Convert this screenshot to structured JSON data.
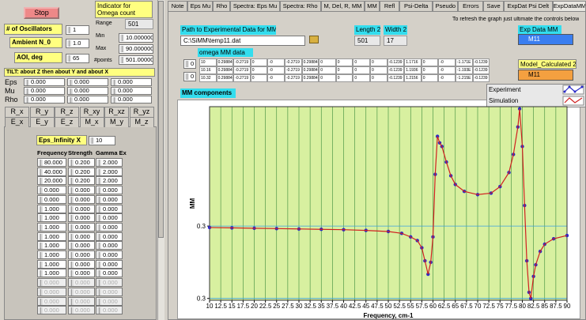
{
  "left": {
    "stop": "Stop",
    "indicator_label": "Indicator for Omega count",
    "range_label": "Range",
    "range_count": "501",
    "oscillators_label": "# of Oscillators",
    "oscillators": "1",
    "ambient_label": "Ambient  N_0",
    "ambient": "1.0",
    "aoi_label": "AOI, deg",
    "aoi": "65",
    "min_label": "Min",
    "min": "10.000000",
    "max_label": "Max",
    "max": "90.000000",
    "points_label": "#points",
    "points": "501.000000",
    "tilt_label": "TILT:  about Z    then    about   Y      and about X",
    "tilt_rows": [
      {
        "name": "Eps",
        "values": [
          "0.000",
          "0.000",
          "0.000"
        ]
      },
      {
        "name": "Mu",
        "values": [
          "0.000",
          "0.000",
          "0.000"
        ]
      },
      {
        "name": "Rho",
        "values": [
          "0.000",
          "0.000",
          "0.000"
        ]
      }
    ],
    "tabs_row1": [
      "R_x",
      "R_y",
      "R_z",
      "R_xy",
      "R_xz",
      "R_yz"
    ],
    "tabs_row2": [
      "E_x",
      "E_y",
      "E_z",
      "M_x",
      "M_y",
      "M_z"
    ],
    "eps_inf_label": "Eps_Infinity X",
    "eps_inf": "10",
    "osc_headers": [
      "Frequency",
      "Strength",
      "Gamma Ex"
    ],
    "osc_rows": [
      [
        "80.000",
        "0.200",
        "2.000"
      ],
      [
        "40.000",
        "0.200",
        "2.000"
      ],
      [
        "20.000",
        "0.200",
        "2.000"
      ],
      [
        "0.000",
        "0.000",
        "0.000"
      ],
      [
        "0.000",
        "0.000",
        "0.000"
      ],
      [
        "1.000",
        "0.000",
        "0.000"
      ],
      [
        "1.000",
        "0.000",
        "0.000"
      ],
      [
        "1.000",
        "0.000",
        "0.000"
      ],
      [
        "1.000",
        "0.000",
        "0.000"
      ],
      [
        "1.000",
        "0.000",
        "0.000"
      ],
      [
        "1.000",
        "0.000",
        "0.000"
      ],
      [
        "1.000",
        "0.000",
        "0.000"
      ],
      [
        "1.000",
        "0.000",
        "0.000"
      ],
      [
        "0.000",
        "0.000",
        "0.000"
      ],
      [
        "0.000",
        "0.000",
        "0.000"
      ],
      [
        "0.000",
        "0.000",
        "0.000"
      ],
      [
        "0.000",
        "0.000",
        "0.000"
      ]
    ]
  },
  "right": {
    "tabs": [
      "Note",
      "Eps Mu",
      "Rho",
      "Spectra: Eps Mu",
      "Spectra: Rho",
      "M, Del, R, MM",
      "MM",
      "Refl",
      "Psi-Delta",
      "Pseudo",
      "Errors",
      "Save",
      "ExpDat Psi Delt",
      "ExpDataMM"
    ],
    "refresh_note": "To  refresh the graph just ultimate the controls below",
    "path_label": "Path to Experimental Data for MM",
    "path": "C:\\SiMM\\temp11.dat",
    "length_label": "Length 2",
    "length": "501",
    "width_label": "Width 2",
    "width": "17",
    "exp_label": "Exp Data MM",
    "exp_value": "M11",
    "array_label": "omega     MM data",
    "array_index": [
      "0",
      "0"
    ],
    "array_rows": [
      [
        "10",
        "0.29884",
        "-0.2719",
        "0",
        "-0",
        "-0.2719",
        "0.29884",
        "0",
        "0",
        "0",
        "0",
        "-0.1239",
        "1.1716",
        "0",
        "-0",
        "-1.171E",
        "-0.1239"
      ],
      [
        "10.16",
        "0.29884",
        "-0.2719",
        "0",
        "-0",
        "-0.2719",
        "0.29884",
        "0",
        "0",
        "0",
        "0",
        "-0.1239",
        "1.1936",
        "0",
        "-0",
        "-1.193E",
        "-0.1239"
      ],
      [
        "10.32",
        "0.29884",
        "-0.2719",
        "0",
        "-0",
        "-0.2719",
        "0.29884",
        "0",
        "0",
        "0",
        "0",
        "-0.1239",
        "1.2156",
        "0",
        "-0",
        "-1.215E",
        "-0.1239"
      ]
    ],
    "model_label": "Model_Calculated 2",
    "model_value": "M11"
  },
  "chart_data": {
    "type": "line",
    "title": "MM components",
    "xlabel": "Frequency, cm-1",
    "ylabel": "MM",
    "xlim": [
      10,
      90
    ],
    "ylim": [
      0.2995,
      0.353
    ],
    "xticks": [
      10,
      12.5,
      15,
      17.5,
      20,
      22.5,
      25,
      27.5,
      30,
      32.5,
      35,
      37.5,
      40,
      42.5,
      45,
      47.5,
      50,
      52.5,
      55,
      57.5,
      60,
      62.5,
      65,
      67.5,
      70,
      72.5,
      75,
      77.5,
      80,
      82.5,
      85,
      87.5,
      90
    ],
    "yticks": [
      0.3,
      {
        "value": 0.32,
        "label": "0.3"
      }
    ],
    "grid": true,
    "legend": "upper right",
    "x": [
      10,
      15,
      20,
      25,
      30,
      35,
      40,
      45,
      50,
      53,
      55,
      56.5,
      57.5,
      58.2,
      58.9,
      59.5,
      60,
      60.5,
      61,
      61.5,
      62,
      63,
      64,
      65,
      67,
      70,
      73,
      75,
      77,
      78,
      79,
      79.4,
      80,
      80.5,
      81,
      81.5,
      81.9,
      82.5,
      83,
      84,
      85,
      87,
      90
    ],
    "series": [
      {
        "name": "Experiment",
        "color": "#2a2ac8",
        "style": "markers",
        "values": [
          0.3196,
          0.3195,
          0.3194,
          0.3193,
          0.3192,
          0.3191,
          0.319,
          0.3188,
          0.3185,
          0.318,
          0.317,
          0.316,
          0.314,
          0.3104,
          0.3067,
          0.31,
          0.317,
          0.3343,
          0.3448,
          0.343,
          0.342,
          0.3377,
          0.3339,
          0.3315,
          0.3296,
          0.3287,
          0.3291,
          0.3309,
          0.3348,
          0.3398,
          0.3474,
          0.3524,
          0.342,
          0.3257,
          0.3104,
          0.3017,
          0.3,
          0.3061,
          0.3093,
          0.313,
          0.315,
          0.3165,
          0.3174
        ]
      },
      {
        "name": "Simulation",
        "color": "#d02020",
        "style": "line",
        "values": [
          0.3196,
          0.3195,
          0.3194,
          0.3193,
          0.3192,
          0.3191,
          0.319,
          0.3188,
          0.3185,
          0.318,
          0.317,
          0.316,
          0.314,
          0.3104,
          0.3067,
          0.31,
          0.317,
          0.3343,
          0.3448,
          0.343,
          0.342,
          0.3377,
          0.3339,
          0.3315,
          0.3296,
          0.3287,
          0.3291,
          0.3309,
          0.3348,
          0.3398,
          0.3474,
          0.3524,
          0.342,
          0.3257,
          0.3104,
          0.3017,
          0.3,
          0.3061,
          0.3093,
          0.313,
          0.315,
          0.3165,
          0.3174
        ]
      }
    ]
  }
}
